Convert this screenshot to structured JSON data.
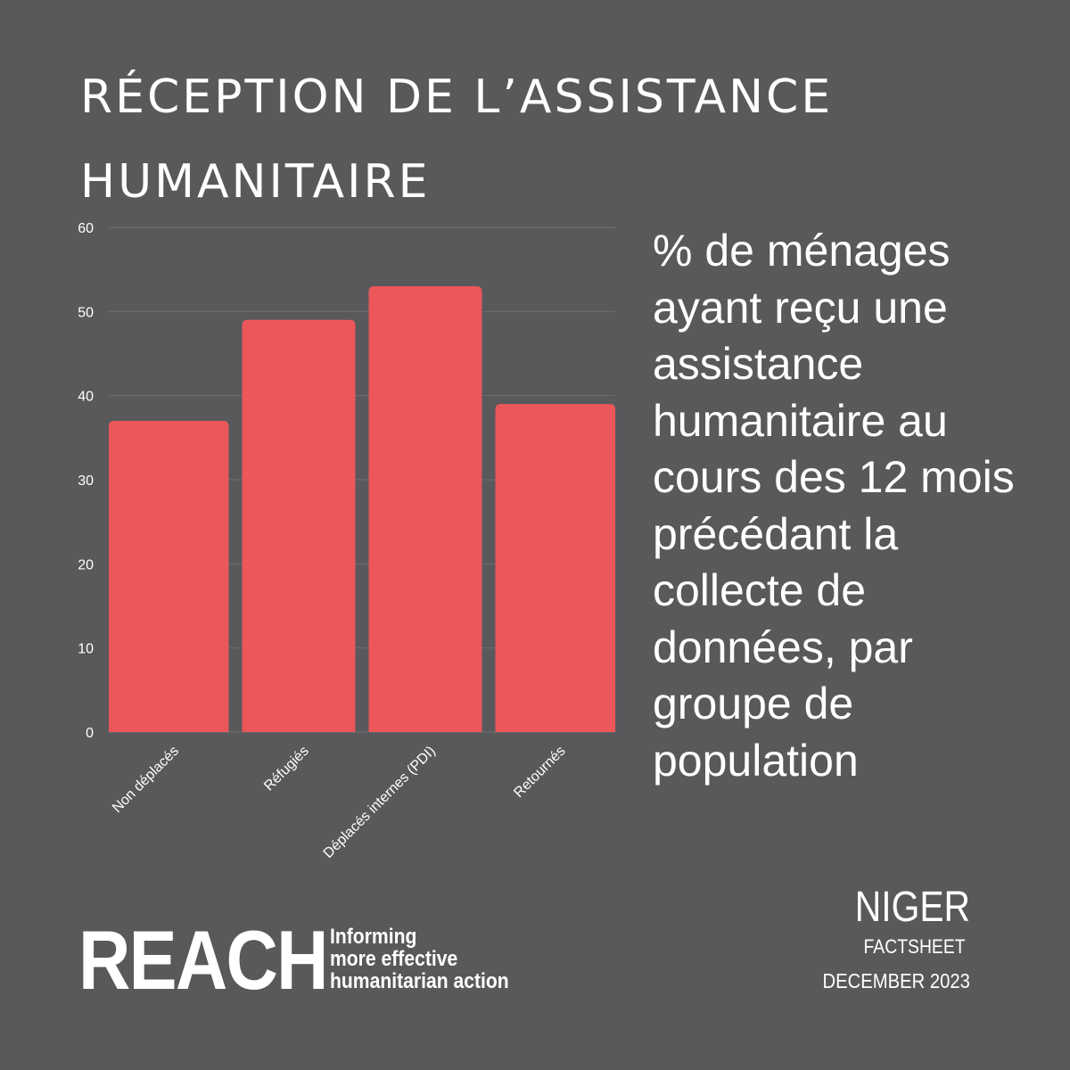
{
  "title": {
    "line1": "RÉCEPTION DE L’ASSISTANCE",
    "line2": "HUMANITAIRE"
  },
  "description": "% de ménages ayant reçu une assistance humanitaire au cours des 12 mois précédant la collecte de données, par groupe de population",
  "colors": {
    "background": "#59595b",
    "bar": "#ec5759",
    "grid": "#6e6e70",
    "text": "#ffffff"
  },
  "chart_data": {
    "type": "bar",
    "categories": [
      "Non déplacés",
      "Réfugiés",
      "Déplacés internes (PDI)",
      "Retournés"
    ],
    "values": [
      37,
      49,
      53,
      39
    ],
    "ylim": [
      0,
      60
    ],
    "yticks": [
      0,
      10,
      20,
      30,
      40,
      50,
      60
    ],
    "grid": true
  },
  "branding": {
    "logo": "REACH",
    "tagline": [
      "Informing",
      "more effective",
      "humanitarian action"
    ]
  },
  "footer": {
    "country": "NIGER",
    "doc_type": "FACTSHEET",
    "date": "DECEMBER 2023"
  }
}
